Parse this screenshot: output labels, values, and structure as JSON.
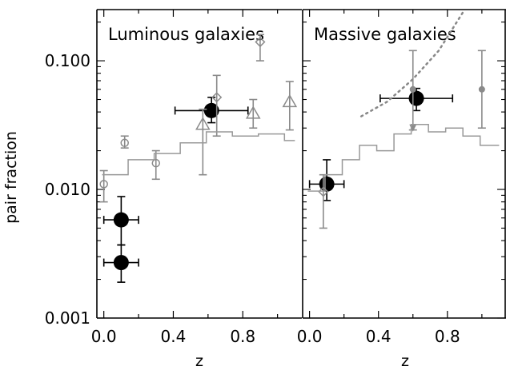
{
  "chart_data": [
    {
      "type": "scatter",
      "panel_title": "Luminous galaxies",
      "xlabel": "z",
      "ylabel": "pair fraction",
      "yscale": "log",
      "xlim": [
        -0.04,
        1.14
      ],
      "ylim": [
        0.001,
        0.25
      ],
      "x_tick_labels": [
        "0.0",
        "0.4",
        "0.8"
      ],
      "y_tick_labels": [
        "0.001",
        "0.010",
        "0.100"
      ],
      "series": [
        {
          "marker": "filled-circle",
          "color": "#000000",
          "points": [
            {
              "x": 0.1,
              "y": 0.0058,
              "xerr": 0.1,
              "ylo": 0.0037,
              "yhi": 0.0088
            },
            {
              "x": 0.1,
              "y": 0.0027,
              "xerr": 0.1,
              "ylo": 0.0019,
              "yhi": 0.0037
            },
            {
              "x": 0.62,
              "y": 0.041,
              "xerr": 0.21,
              "ylo": 0.033,
              "yhi": 0.052
            }
          ]
        },
        {
          "marker": "open-circle",
          "color": "#8a8a8a",
          "points": [
            {
              "x": 0.0,
              "y": 0.011,
              "ylo": 0.008,
              "yhi": 0.014
            },
            {
              "x": 0.12,
              "y": 0.023,
              "ylo": 0.021,
              "yhi": 0.026
            },
            {
              "x": 0.3,
              "y": 0.016,
              "ylo": 0.012,
              "yhi": 0.02
            }
          ]
        },
        {
          "marker": "open-diamond",
          "color": "#8a8a8a",
          "points": [
            {
              "x": 0.65,
              "y": 0.052,
              "ylo": 0.026,
              "yhi": 0.077
            },
            {
              "x": 0.9,
              "y": 0.14,
              "ylo": 0.1,
              "yhi": 0.16
            }
          ]
        },
        {
          "marker": "open-triangle",
          "color": "#8a8a8a",
          "points": [
            {
              "x": 0.57,
              "y": 0.032,
              "ylo": 0.013,
              "yhi": 0.042
            },
            {
              "x": 0.86,
              "y": 0.039,
              "ylo": 0.03,
              "yhi": 0.05
            },
            {
              "x": 1.07,
              "y": 0.048,
              "ylo": 0.029,
              "yhi": 0.069
            }
          ]
        },
        {
          "type": "step",
          "color": "#999999",
          "edges": [
            -0.01,
            0.14,
            0.29,
            0.44,
            0.59,
            0.74,
            0.89,
            1.04,
            1.1
          ],
          "values": [
            0.013,
            0.017,
            0.019,
            0.023,
            0.028,
            0.026,
            0.027,
            0.024
          ]
        }
      ]
    },
    {
      "type": "scatter",
      "panel_title": "Massive galaxies",
      "xlabel": "z",
      "yscale": "log",
      "xlim": [
        -0.04,
        1.14
      ],
      "ylim": [
        0.001,
        0.25
      ],
      "x_tick_labels": [
        "0.0",
        "0.4",
        "0.8"
      ],
      "series": [
        {
          "marker": "filled-circle",
          "color": "#000000",
          "points": [
            {
              "x": 0.1,
              "y": 0.011,
              "xerr": 0.1,
              "ylo": 0.0082,
              "yhi": 0.017
            },
            {
              "x": 0.62,
              "y": 0.051,
              "xerr": 0.21,
              "ylo": 0.041,
              "yhi": 0.061
            }
          ]
        },
        {
          "marker": "small-filled-circle",
          "color": "#8a8a8a",
          "points": [
            {
              "x": 0.6,
              "y": 0.06,
              "ylo": 0.029,
              "yhi": 0.12
            },
            {
              "x": 1.0,
              "y": 0.06,
              "ylo": 0.03,
              "yhi": 0.12
            }
          ]
        },
        {
          "marker": "open-diamond",
          "color": "#8a8a8a",
          "points": [
            {
              "x": 0.08,
              "y": 0.0096,
              "ylo": 0.005,
              "yhi": 0.013
            }
          ]
        },
        {
          "marker": "filled-triangle-down",
          "color": "#8a8a8a",
          "points": [
            {
              "x": 0.6,
              "y": 0.03
            }
          ]
        },
        {
          "type": "dotted-line",
          "color": "#888888",
          "x": [
            0.3,
            0.45,
            0.6,
            0.75,
            0.9
          ],
          "y": [
            0.037,
            0.048,
            0.072,
            0.12,
            0.25
          ]
        },
        {
          "type": "step",
          "color": "#999999",
          "edges": [
            -0.01,
            0.09,
            0.19,
            0.29,
            0.39,
            0.49,
            0.59,
            0.69,
            0.79,
            0.89,
            0.99,
            1.1
          ],
          "values": [
            0.0097,
            0.013,
            0.017,
            0.022,
            0.02,
            0.027,
            0.032,
            0.028,
            0.03,
            0.026,
            0.022
          ]
        }
      ]
    }
  ]
}
